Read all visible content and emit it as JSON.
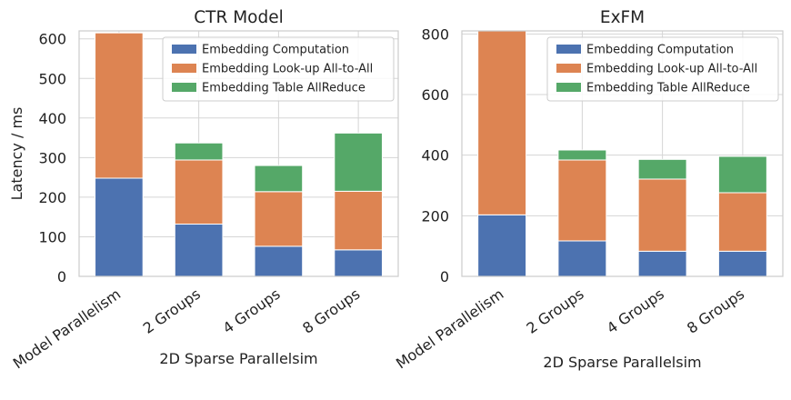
{
  "chart_data": [
    {
      "type": "bar",
      "stacked": true,
      "title": "CTR Model",
      "xlabel": "2D Sparse Parallelsim",
      "ylabel": "Latency / ms",
      "categories": [
        "Model Parallelism",
        "2 Groups",
        "4 Groups",
        "8 Groups"
      ],
      "ylim": [
        0,
        620
      ],
      "yticks": [
        0,
        100,
        200,
        300,
        400,
        500,
        600
      ],
      "grid": true,
      "legend_position": "top-right",
      "series": [
        {
          "name": "Embedding Computation",
          "color": "#4c72b0",
          "values": [
            248,
            132,
            76,
            67
          ]
        },
        {
          "name": "Embedding Look-up All-to-All",
          "color": "#dd8452",
          "values": [
            367,
            162,
            138,
            148
          ]
        },
        {
          "name": "Embedding Table AllReduce",
          "color": "#55a868",
          "values": [
            0,
            43,
            66,
            147
          ]
        }
      ]
    },
    {
      "type": "bar",
      "stacked": true,
      "title": "ExFM",
      "xlabel": "2D Sparse Parallelsim",
      "ylabel": "",
      "categories": [
        "Model Parallelism",
        "2 Groups",
        "4 Groups",
        "8 Groups"
      ],
      "ylim": [
        0,
        810
      ],
      "yticks": [
        0,
        200,
        400,
        600,
        800
      ],
      "grid": true,
      "legend_position": "top-right",
      "series": [
        {
          "name": "Embedding Computation",
          "color": "#4c72b0",
          "values": [
            203,
            117,
            83,
            83
          ]
        },
        {
          "name": "Embedding Look-up All-to-All",
          "color": "#dd8452",
          "values": [
            607,
            267,
            238,
            193
          ]
        },
        {
          "name": "Embedding Table AllReduce",
          "color": "#55a868",
          "values": [
            0,
            33,
            65,
            120
          ]
        }
      ]
    }
  ]
}
